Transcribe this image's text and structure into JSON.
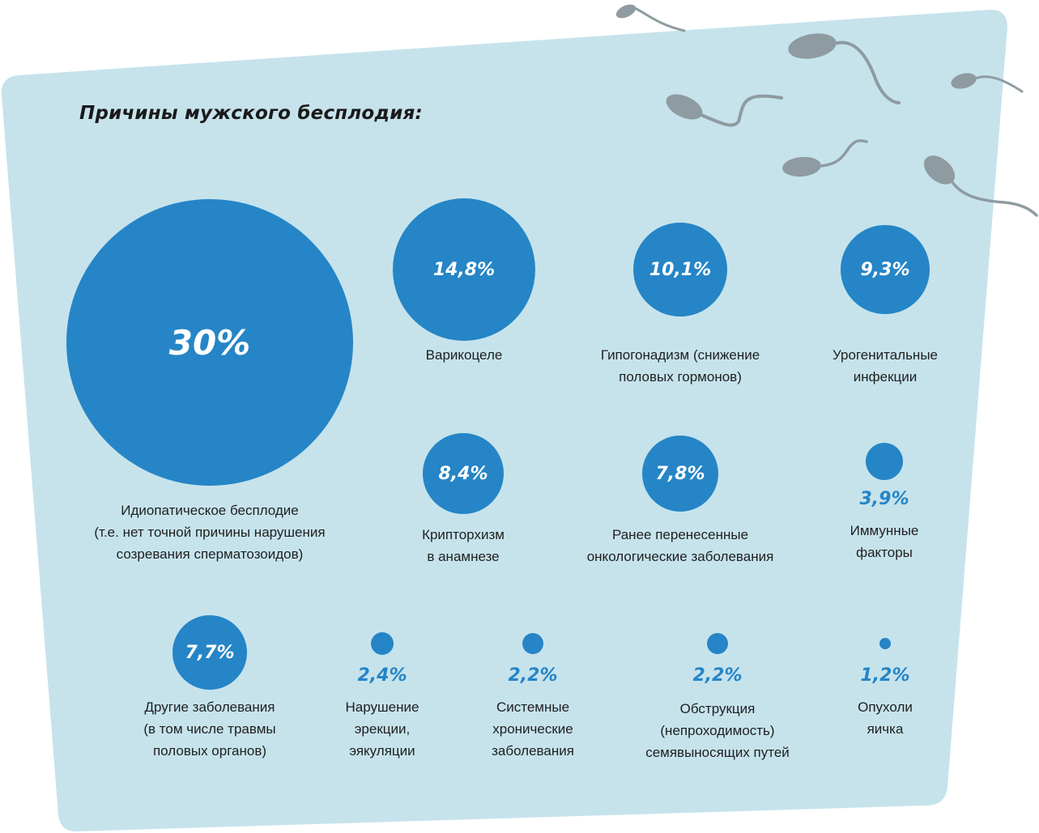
{
  "title": "Причины мужского бесплодия:",
  "colors": {
    "background_card": "#c6e3ec",
    "bubble": "#2585c6",
    "sperm": "#8e9ba1",
    "title": "#1a1a1a"
  },
  "decorations": [
    "sperm-cell-icon"
  ],
  "chart_data": {
    "type": "bubble",
    "title": "Причины мужского бесплодия:",
    "unit": "%",
    "items": [
      {
        "value": 30,
        "value_label": "30%",
        "label_lines": [
          "Идиопатическое бесплодие",
          "(т.е. нет точной причины нарушения",
          "созревания сперматозоидов)"
        ]
      },
      {
        "value": 14.8,
        "value_label": "14,8%",
        "label_lines": [
          "Варикоцеле"
        ]
      },
      {
        "value": 10.1,
        "value_label": "10,1%",
        "label_lines": [
          "Гипогонадизм (снижение",
          "половых гормонов)"
        ]
      },
      {
        "value": 9.3,
        "value_label": "9,3%",
        "label_lines": [
          "Урогенитальные",
          "инфекции"
        ]
      },
      {
        "value": 8.4,
        "value_label": "8,4%",
        "label_lines": [
          "Крипторхизм",
          "в анамнезе"
        ]
      },
      {
        "value": 7.8,
        "value_label": "7,8%",
        "label_lines": [
          "Ранее перенесенные",
          "онкологические заболевания"
        ]
      },
      {
        "value": 3.9,
        "value_label": "3,9%",
        "label_lines": [
          "Иммунные",
          "факторы"
        ]
      },
      {
        "value": 7.7,
        "value_label": "7,7%",
        "label_lines": [
          "Другие заболевания",
          "(в том числе травмы",
          "половых органов)"
        ]
      },
      {
        "value": 2.4,
        "value_label": "2,4%",
        "label_lines": [
          "Нарушение",
          "эрекции,",
          "эякуляции"
        ]
      },
      {
        "value": 2.2,
        "value_label": "2,2%",
        "label_lines": [
          "Системные",
          "хронические",
          "заболевания"
        ]
      },
      {
        "value": 2.2,
        "value_label": "2,2%",
        "label_lines": [
          "Обструкция",
          "(непроходимость)",
          "семявыносящих путей"
        ]
      },
      {
        "value": 1.2,
        "value_label": "1,2%",
        "label_lines": [
          "Опухоли",
          "яичка"
        ]
      }
    ]
  }
}
